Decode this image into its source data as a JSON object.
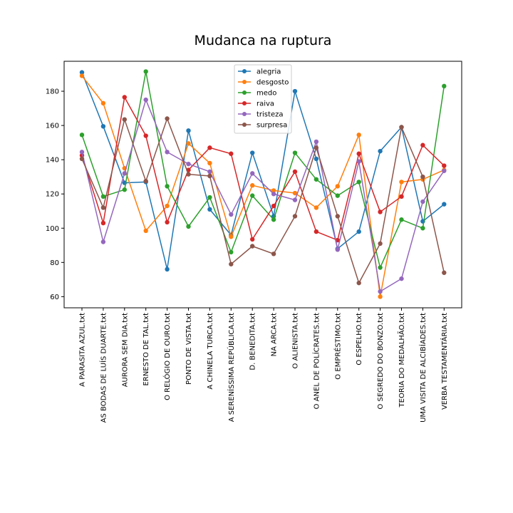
{
  "chart_data": {
    "type": "line",
    "title": "Mudanca na ruptura",
    "xlabel": "",
    "ylabel": "",
    "ylim": [
      53.5,
      197.5
    ],
    "yticks": [
      60,
      80,
      100,
      120,
      140,
      160,
      180
    ],
    "grid": false,
    "legend_position": "top-center",
    "categories": [
      "A PARASITA AZUL.txt",
      "AS BODAS DE LUÍS DUARTE.txt",
      "AURORA SEM DIA.txt",
      "ERNESTO DE TAL.txt",
      "O RELÓGIO DE OURO.txt",
      "PONTO DE VISTA.txt",
      "A CHINELA TURCA.txt",
      "A SERENÍSSIMA REPÚBLICA.txt",
      "D. BENEDITA.txt",
      "NA ARCA.txt",
      "O ALIENISTA.txt",
      "O ANEL DE POLÍCRATES.txt",
      "O EMPRÉSTIMO.txt",
      "O ESPELHO.txt",
      "O SEGREDO DO BONZO.txt",
      "TEORIA DO MEDALHÃO.txt",
      "UMA VISITA DE ALCIBÍADES.txt",
      "VERBA TESTAMENTÁRIA.txt"
    ],
    "series": [
      {
        "name": "alegria",
        "color": "#1f77b4",
        "values": [
          191,
          159.5,
          126.5,
          127,
          76,
          157,
          111,
          96,
          144,
          107,
          180,
          140.5,
          88,
          98,
          145,
          159,
          104,
          114
        ]
      },
      {
        "name": "desgosto",
        "color": "#ff7f0e",
        "values": [
          189,
          173,
          135,
          98.5,
          113,
          149.5,
          138,
          95,
          125,
          122,
          120.5,
          112,
          124.5,
          154.5,
          60,
          127,
          128.5,
          134
        ]
      },
      {
        "name": "medo",
        "color": "#2ca02c",
        "values": [
          154.5,
          118.5,
          122.5,
          191.5,
          124.5,
          101,
          118,
          86,
          119,
          105,
          144,
          128.5,
          119,
          127,
          77,
          105,
          100,
          183
        ]
      },
      {
        "name": "raiva",
        "color": "#d62728",
        "values": [
          142.5,
          103,
          176.5,
          154,
          103.5,
          134,
          147,
          143.5,
          93.5,
          113,
          133,
          98,
          93,
          143.5,
          109.5,
          118.5,
          148.5,
          136.5
        ]
      },
      {
        "name": "tristeza",
        "color": "#9467bd",
        "values": [
          144.5,
          92,
          132,
          175,
          144.5,
          137.5,
          133,
          108,
          132,
          120,
          116.5,
          150.5,
          87.5,
          139,
          63,
          70.5,
          115.5,
          133.5
        ]
      },
      {
        "name": "surpresa",
        "color": "#8c564b",
        "values": [
          140.5,
          112,
          163.5,
          127.5,
          164,
          131.5,
          130.5,
          79,
          89.5,
          85,
          107,
          147,
          107,
          68,
          91,
          159,
          130,
          74
        ]
      }
    ]
  }
}
